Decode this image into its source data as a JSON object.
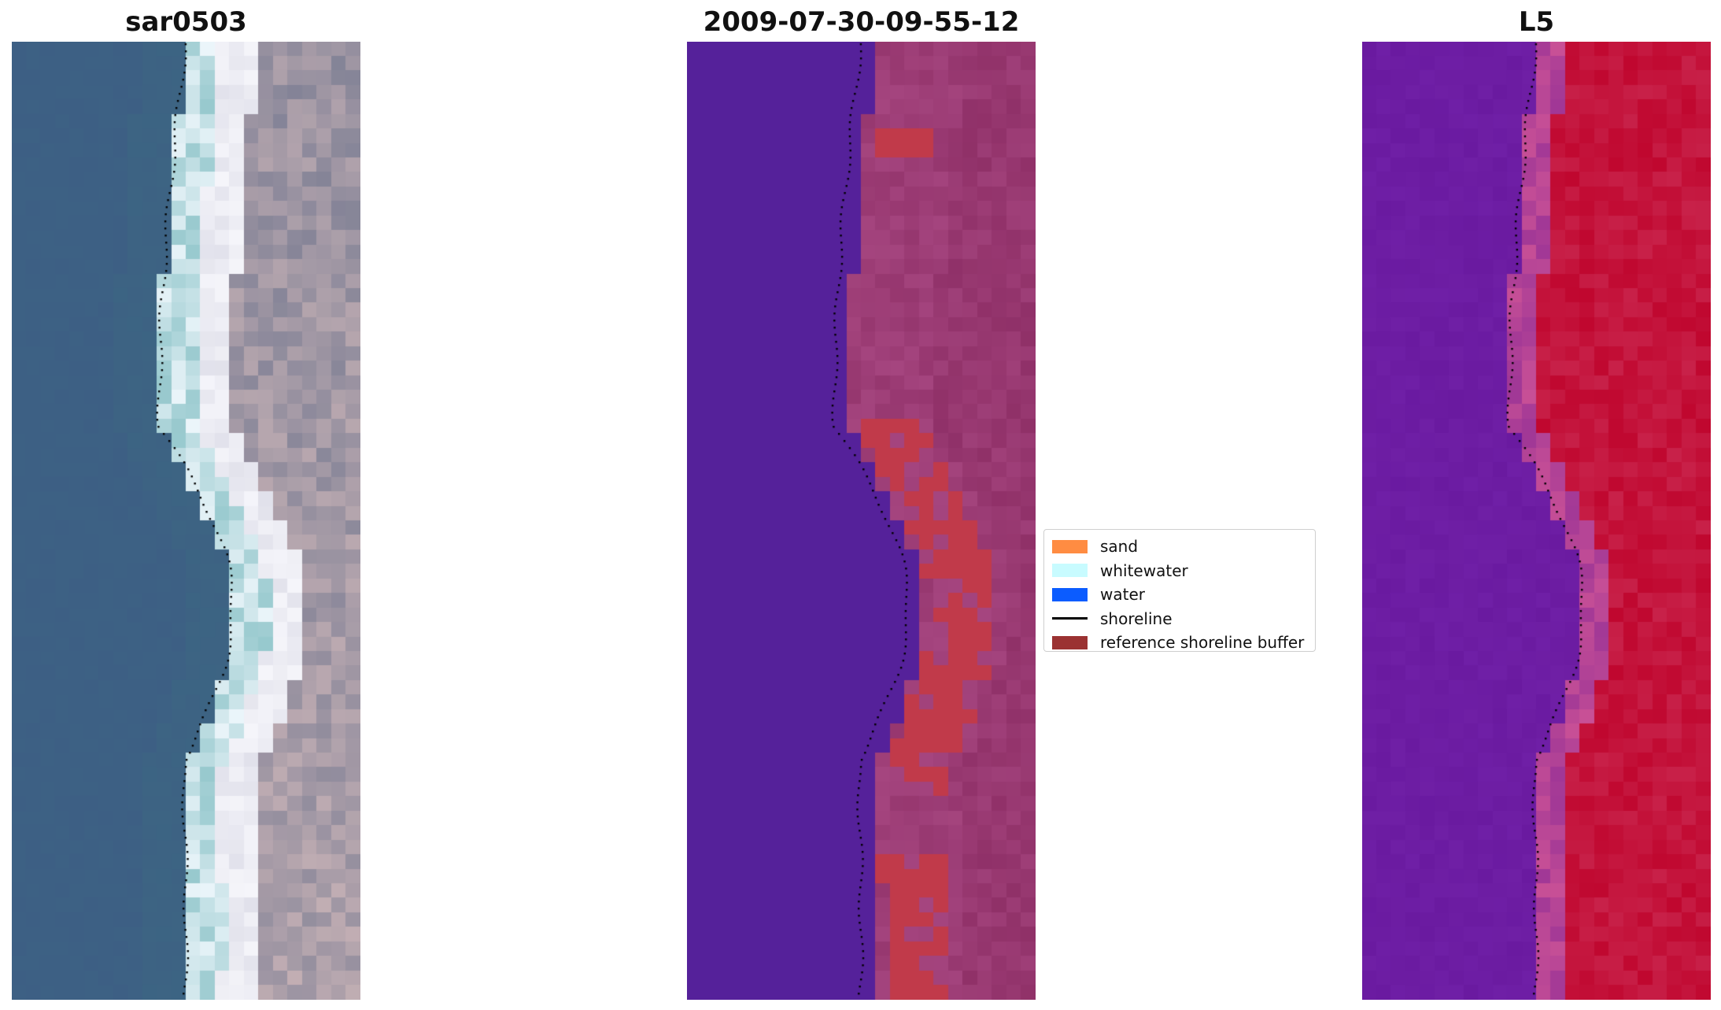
{
  "panels": [
    {
      "title": "sar0503",
      "kind": "rgb"
    },
    {
      "title": "2009-07-30-09-55-12",
      "kind": "classified"
    },
    {
      "title": "L5",
      "kind": "index"
    }
  ],
  "legend": {
    "items": [
      {
        "label": "sand",
        "color": "#ff8c42",
        "type": "patch"
      },
      {
        "label": "whitewater",
        "color": "#c8fbff",
        "type": "patch"
      },
      {
        "label": "water",
        "color": "#0b5cff",
        "type": "patch"
      },
      {
        "label": "shoreline",
        "color": "#000000",
        "type": "line"
      },
      {
        "label": "reference shoreline buffer",
        "color": "#9b3232",
        "type": "patch"
      }
    ]
  },
  "colors": {
    "water_rgb": "#3d5f84",
    "water_class": "#55219a",
    "land_class": "#a5457f",
    "buffer": "#c13a4a",
    "index_low": "#6a1aa0",
    "index_high": "#c0072f",
    "shoreline_dots": "#000000"
  }
}
